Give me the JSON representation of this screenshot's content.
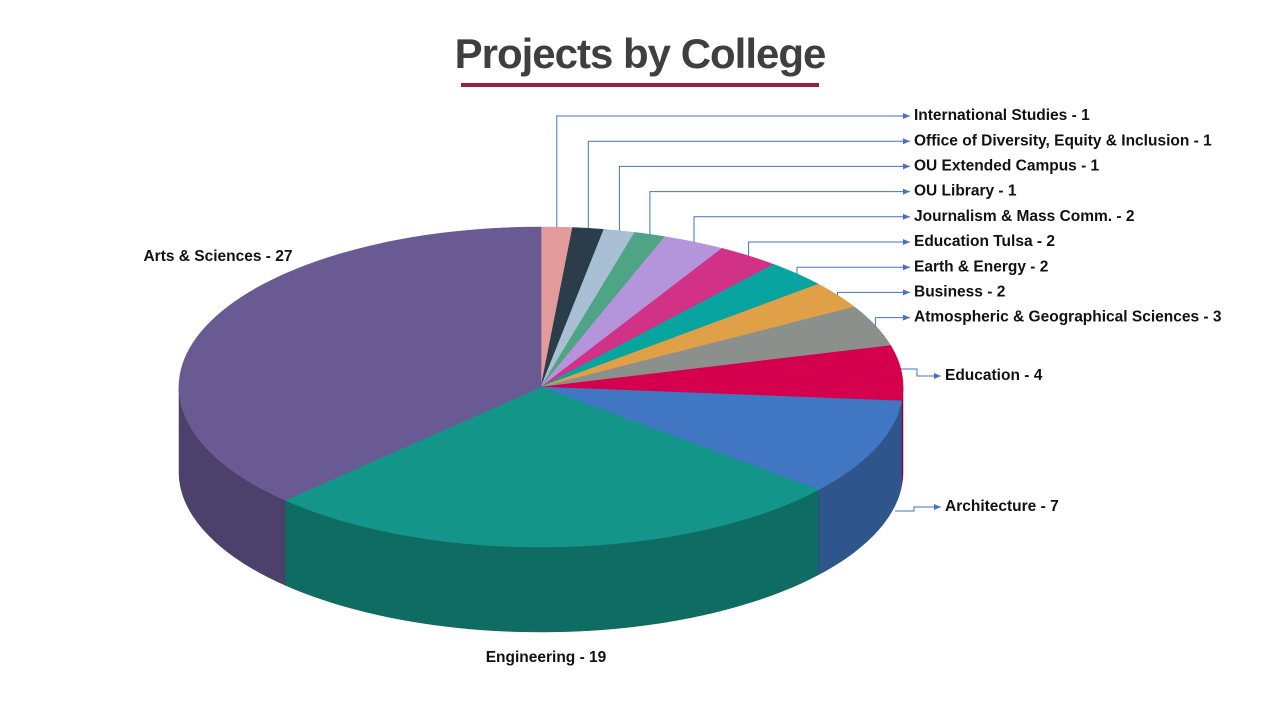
{
  "colors": {
    "accent": "#a01c3c",
    "title": "#3f3f3f",
    "leader": "#4472c4"
  },
  "chart_data": {
    "type": "pie",
    "title": "Projects by College",
    "slices": [
      {
        "label": "International Studies - 1",
        "name": "International Studies",
        "value": 1,
        "color": "#e39a9a"
      },
      {
        "label": "Office of Diversity, Equity & Inclusion - 1",
        "name": "Office of Diversity, Equity & Inclusion",
        "value": 1,
        "color": "#2b3d4a"
      },
      {
        "label": "OU Extended Campus - 1",
        "name": "OU Extended Campus",
        "value": 1,
        "color": "#a8bfd4"
      },
      {
        "label": "OU Library - 1",
        "name": "OU Library",
        "value": 1,
        "color": "#4ea585"
      },
      {
        "label": "Journalism & Mass Comm. - 2",
        "name": "Journalism & Mass Comm.",
        "value": 2,
        "color": "#b494da"
      },
      {
        "label": "Education Tulsa - 2",
        "name": "Education Tulsa",
        "value": 2,
        "color": "#d23286"
      },
      {
        "label": "Earth & Energy - 2",
        "name": "Earth & Energy",
        "value": 2,
        "color": "#08a5a0"
      },
      {
        "label": "Business - 2",
        "name": "Business",
        "value": 2,
        "color": "#e0a048"
      },
      {
        "label": "Atmospheric & Geographical Sciences - 3",
        "name": "Atmospheric & Geographical Sciences",
        "value": 3,
        "color": "#8b908c"
      },
      {
        "label": "Education - 4",
        "name": "Education",
        "value": 4,
        "color": "#d4004e"
      },
      {
        "label": "Architecture - 7",
        "name": "Architecture",
        "value": 7,
        "color": "#4076c2"
      },
      {
        "label": "Engineering - 19",
        "name": "Engineering",
        "value": 19,
        "color": "#139689"
      },
      {
        "label": "Arts & Sciences - 27",
        "name": "Arts & Sciences",
        "value": 27,
        "color": "#695a93"
      }
    ]
  }
}
